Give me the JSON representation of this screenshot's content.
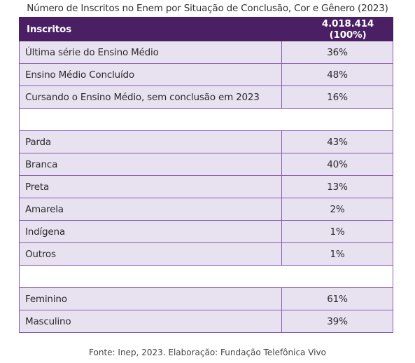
{
  "title": "Número de Inscritos no Enem por Situação de Conclusão, Cor e Gênero (2023)",
  "table": {
    "header": {
      "label": "Inscritos",
      "value": "4.018.414 (100%)"
    },
    "groups": [
      {
        "rows": [
          {
            "label": "Última série do Ensino Médio",
            "value": "36%"
          },
          {
            "label": "Ensino Médio Concluído",
            "value": "48%"
          },
          {
            "label": "Cursando o Ensino Médio, sem conclusão em 2023",
            "value": "16%"
          }
        ]
      },
      {
        "rows": [
          {
            "label": "Parda",
            "value": "43%"
          },
          {
            "label": "Branca",
            "value": "40%"
          },
          {
            "label": "Preta",
            "value": "13%"
          },
          {
            "label": "Amarela",
            "value": "2%"
          },
          {
            "label": "Indígena",
            "value": "1%"
          },
          {
            "label": "Outros",
            "value": "1%"
          }
        ]
      },
      {
        "rows": [
          {
            "label": "Feminino",
            "value": "61%"
          },
          {
            "label": "Masculino",
            "value": "39%"
          }
        ]
      }
    ]
  },
  "source": "Fonte:  Inep, 2023. Elaboração: Fundação Telefônica Vivo",
  "colors": {
    "header_bg": "#4b1f64",
    "row_bg": "#e8e1f0",
    "border": "#8a5ab5"
  }
}
